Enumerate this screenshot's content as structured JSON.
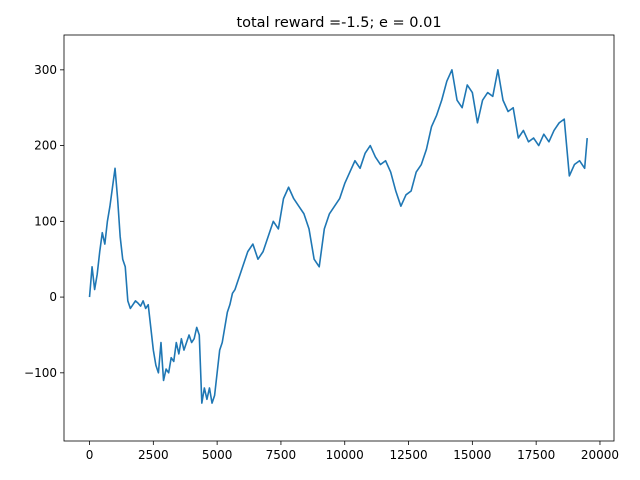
{
  "chart_data": {
    "type": "line",
    "title": "total reward =-1.5;  e = 0.01",
    "xlabel": "",
    "ylabel": "",
    "xlim": [
      -1000,
      20550
    ],
    "ylim": [
      -190,
      346
    ],
    "grid": false,
    "x_ticks": [
      0,
      2500,
      5000,
      7500,
      10000,
      12500,
      15000,
      17500,
      20000
    ],
    "x_tick_labels": [
      "0",
      "2500",
      "5000",
      "7500",
      "10000",
      "12500",
      "15000",
      "17500",
      "20000"
    ],
    "y_ticks": [
      -100,
      0,
      100,
      200,
      300
    ],
    "y_tick_labels": [
      "−100",
      "0",
      "100",
      "200",
      "300"
    ],
    "series": [
      {
        "color": "#1f77b4",
        "x": [
          0,
          100,
          200,
          300,
          400,
          500,
          600,
          700,
          800,
          900,
          1000,
          1100,
          1200,
          1300,
          1400,
          1500,
          1600,
          1700,
          1800,
          1900,
          2000,
          2100,
          2200,
          2300,
          2400,
          2500,
          2600,
          2700,
          2800,
          2900,
          3000,
          3100,
          3200,
          3300,
          3400,
          3500,
          3600,
          3700,
          3800,
          3900,
          4000,
          4100,
          4200,
          4300,
          4400,
          4500,
          4600,
          4700,
          4800,
          4900,
          5000,
          5100,
          5200,
          5300,
          5400,
          5500,
          5600,
          5700,
          5800,
          5900,
          6000,
          6200,
          6400,
          6600,
          6800,
          7000,
          7200,
          7400,
          7600,
          7800,
          8000,
          8200,
          8400,
          8600,
          8800,
          9000,
          9200,
          9400,
          9600,
          9800,
          10000,
          10200,
          10400,
          10600,
          10800,
          11000,
          11200,
          11400,
          11600,
          11800,
          12000,
          12200,
          12400,
          12600,
          12800,
          13000,
          13200,
          13400,
          13600,
          13800,
          14000,
          14200,
          14400,
          14600,
          14800,
          15000,
          15200,
          15400,
          15600,
          15800,
          16000,
          16200,
          16400,
          16600,
          16800,
          17000,
          17200,
          17400,
          17600,
          17800,
          18000,
          18200,
          18400,
          18600,
          18800,
          19000,
          19200,
          19400,
          19500
        ],
        "y": [
          0,
          40,
          10,
          30,
          60,
          85,
          70,
          100,
          120,
          145,
          170,
          130,
          80,
          50,
          40,
          -5,
          -15,
          -10,
          -5,
          -8,
          -12,
          -5,
          -15,
          -10,
          -40,
          -70,
          -90,
          -100,
          -60,
          -110,
          -95,
          -100,
          -80,
          -85,
          -60,
          -75,
          -55,
          -70,
          -60,
          -50,
          -60,
          -55,
          -40,
          -50,
          -140,
          -120,
          -135,
          -120,
          -140,
          -130,
          -100,
          -70,
          -60,
          -40,
          -20,
          -10,
          5,
          10,
          20,
          30,
          40,
          60,
          70,
          50,
          60,
          80,
          100,
          90,
          130,
          145,
          130,
          120,
          110,
          90,
          50,
          40,
          90,
          110,
          120,
          130,
          150,
          165,
          180,
          170,
          190,
          200,
          185,
          175,
          180,
          165,
          140,
          120,
          135,
          140,
          165,
          175,
          195,
          225,
          240,
          260,
          285,
          300,
          260,
          250,
          280,
          270,
          230,
          260,
          270,
          265,
          300,
          260,
          245,
          250,
          210,
          220,
          205,
          210,
          200,
          215,
          205,
          220,
          230,
          235,
          160,
          175,
          180,
          170,
          210
        ]
      }
    ]
  }
}
